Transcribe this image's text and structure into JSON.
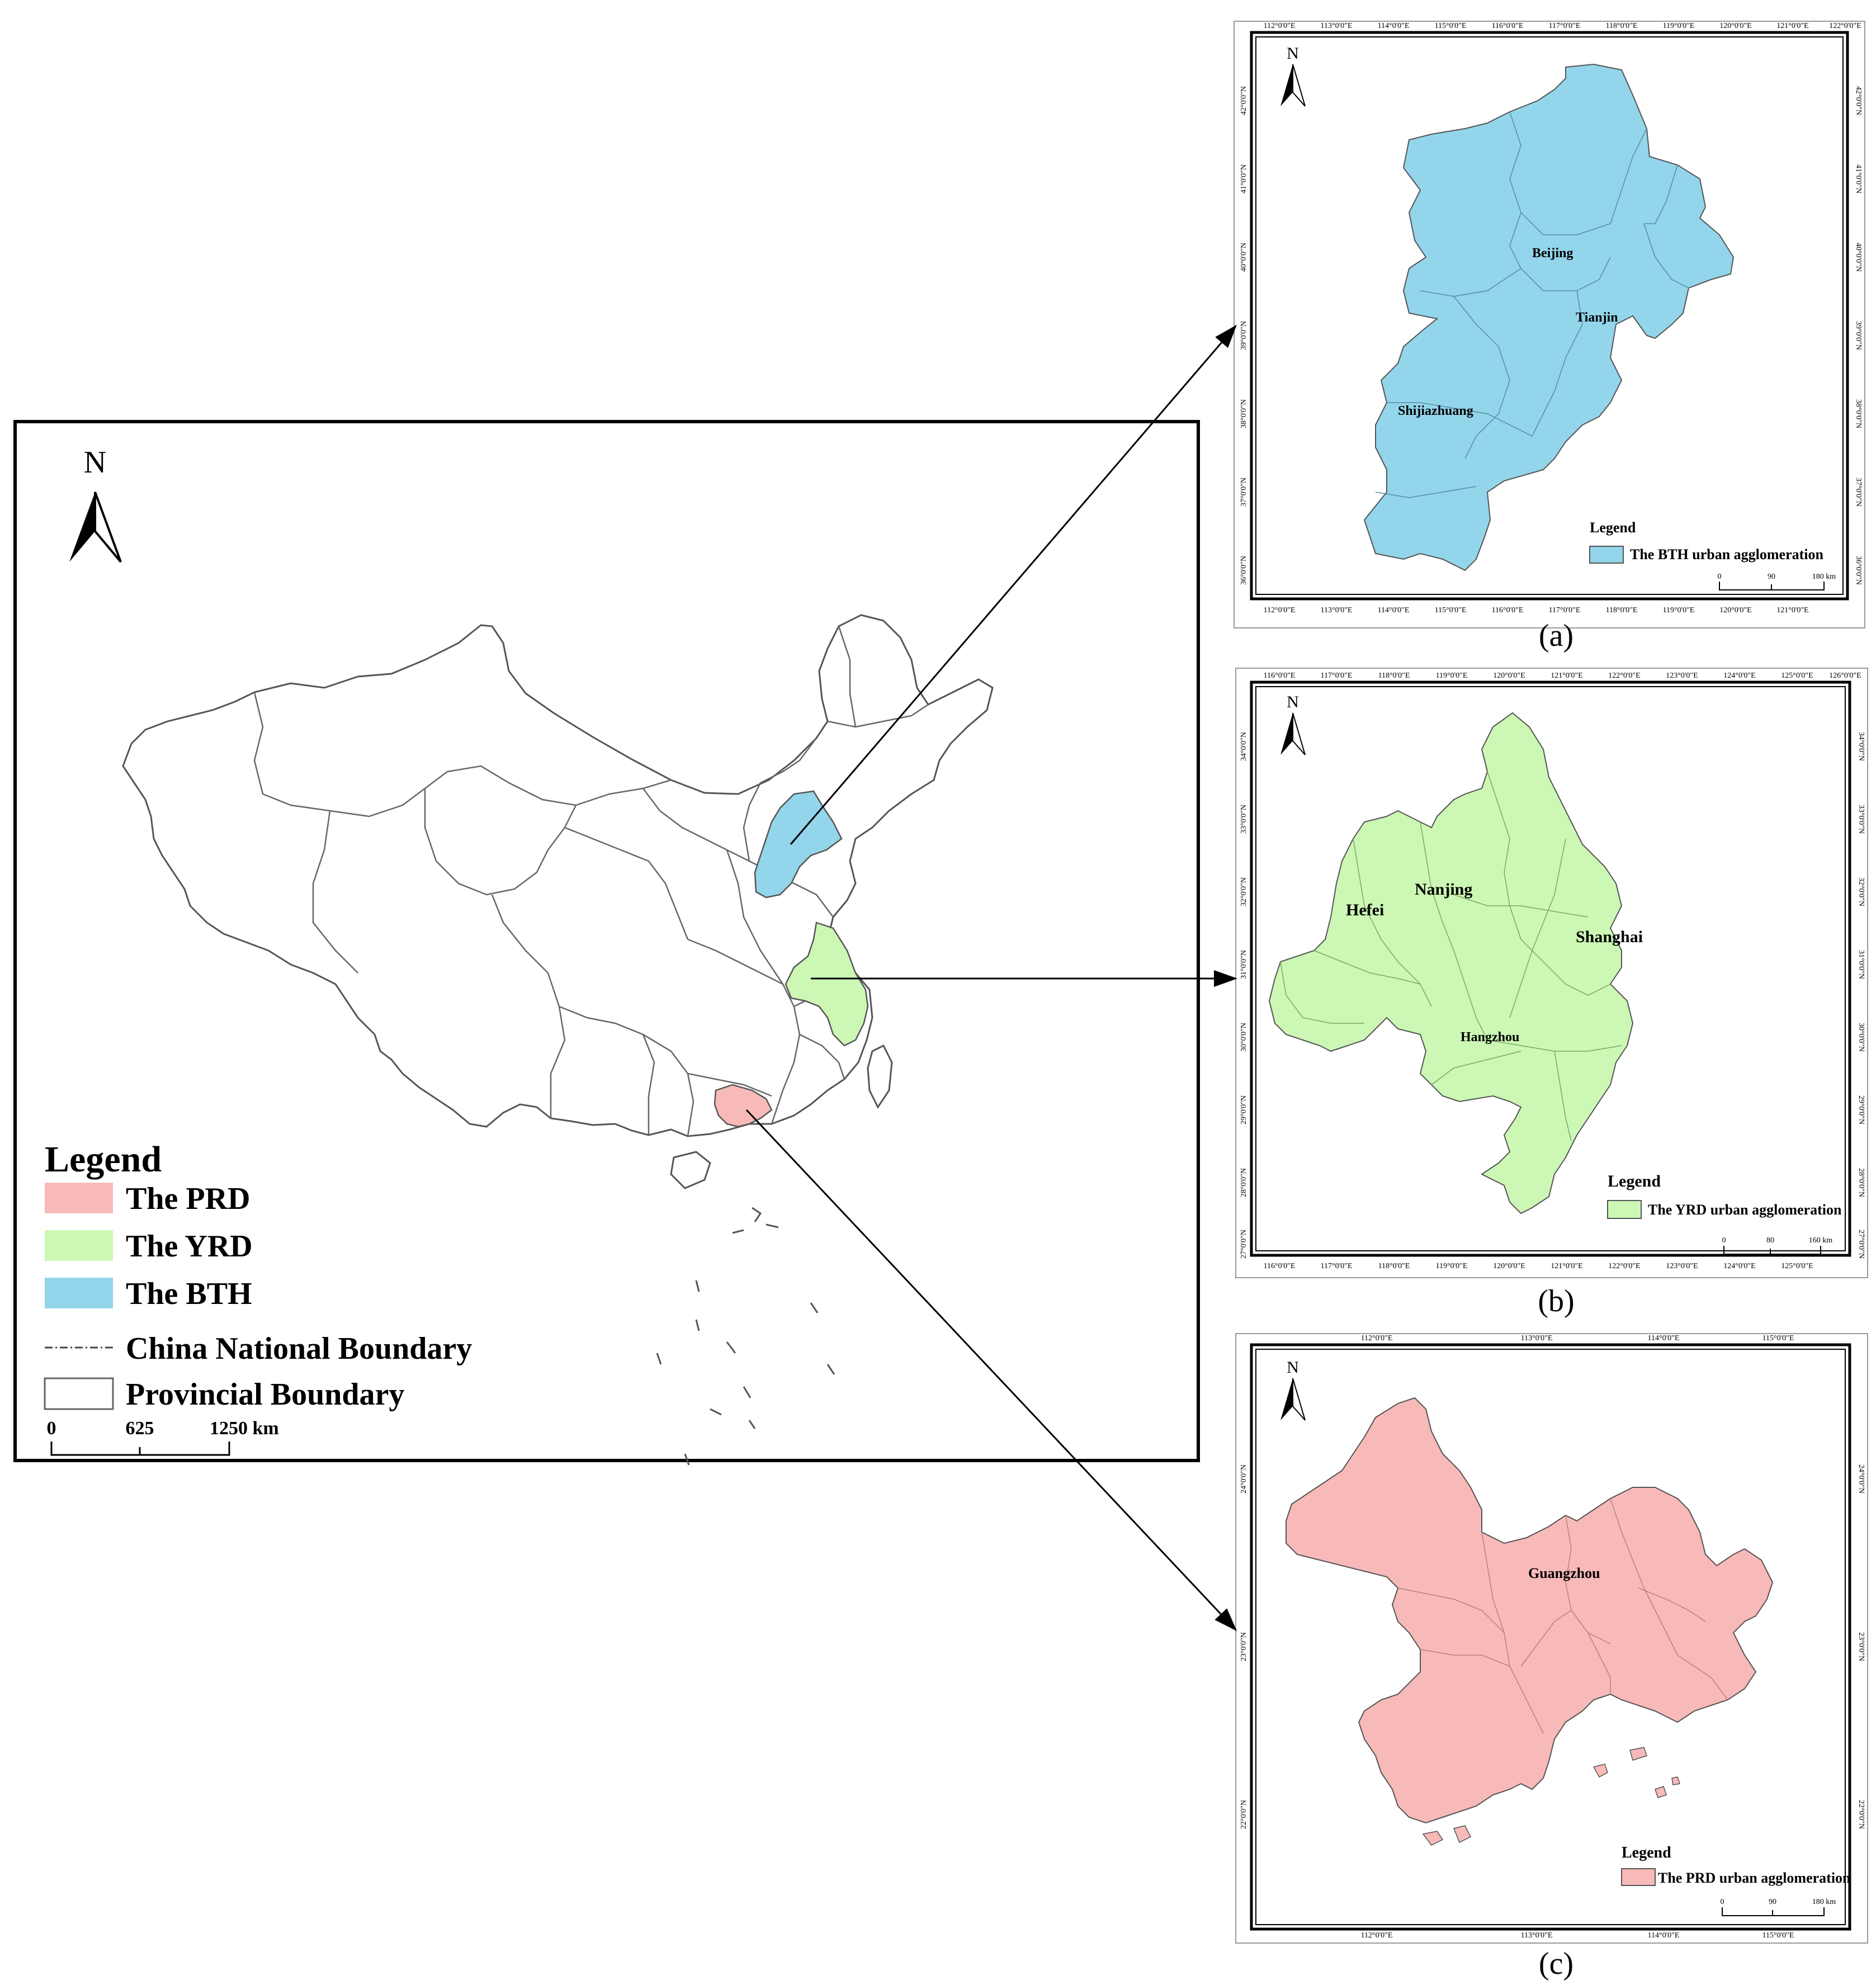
{
  "colors": {
    "prd": "#F8B9B9",
    "yrd": "#CCF7B4",
    "bth": "#93D5EB",
    "outline": "#444444",
    "frame": "#000000"
  },
  "main_map": {
    "north_label": "N",
    "legend": {
      "title": "Legend",
      "items": [
        {
          "label": "The PRD",
          "swatch": "fill-prd"
        },
        {
          "label": "The YRD",
          "swatch": "fill-yrd"
        },
        {
          "label": "The BTH",
          "swatch": "fill-bth"
        },
        {
          "label": "China National Boundary",
          "swatch": "dash-dot-line"
        },
        {
          "label": "Provincial Boundary",
          "swatch": "empty-box"
        }
      ]
    },
    "scale": {
      "ticks": [
        "0",
        "625",
        "1250 km"
      ]
    }
  },
  "insets": [
    {
      "id": "a",
      "caption": "(a)",
      "north_label": "N",
      "lon_labels": [
        "112°0'0\"E",
        "113°0'0\"E",
        "114°0'0\"E",
        "115°0'0\"E",
        "116°0'0\"E",
        "117°0'0\"E",
        "118°0'0\"E",
        "119°0'0\"E",
        "120°0'0\"E",
        "121°0'0\"E",
        "122°0'0\"E"
      ],
      "lat_labels": [
        "42°0'0\"N",
        "41°0'0\"N",
        "40°0'0\"N",
        "39°0'0\"N",
        "38°0'0\"N",
        "37°0'0\"N",
        "36°0'0\"N"
      ],
      "cities": [
        "Beijing",
        "Tianjin",
        "Shijiazhuang"
      ],
      "legend_title": "Legend",
      "legend_item": "The BTH urban agglomeration",
      "scale": [
        "0",
        "90",
        "180 km"
      ]
    },
    {
      "id": "b",
      "caption": "(b)",
      "north_label": "N",
      "lon_labels": [
        "116°0'0\"E",
        "117°0'0\"E",
        "118°0'0\"E",
        "119°0'0\"E",
        "120°0'0\"E",
        "121°0'0\"E",
        "122°0'0\"E",
        "123°0'0\"E",
        "124°0'0\"E",
        "125°0'0\"E",
        "126°0'0\"E"
      ],
      "lat_labels": [
        "34°0'0\"N",
        "33°0'0\"N",
        "32°0'0\"N",
        "31°0'0\"N",
        "30°0'0\"N",
        "29°0'0\"N",
        "28°0'0\"N",
        "27°0'0\"N"
      ],
      "cities": [
        "Nanjing",
        "Hefei",
        "Shanghai",
        "Hangzhou"
      ],
      "legend_title": "Legend",
      "legend_item": "The YRD urban agglomeration",
      "scale": [
        "0",
        "80",
        "160 km"
      ]
    },
    {
      "id": "c",
      "caption": "(c)",
      "north_label": "N",
      "lon_labels": [
        "112°0'0\"E",
        "113°0'0\"E",
        "114°0'0\"E",
        "115°0'0\"E"
      ],
      "lat_labels": [
        "24°0'0\"N",
        "23°0'0\"N",
        "22°0'0\"N"
      ],
      "cities": [
        "Guangzhou"
      ],
      "legend_title": "Legend",
      "legend_item": "The PRD urban agglomeration",
      "scale": [
        "0",
        "90",
        "180 km"
      ]
    }
  ]
}
